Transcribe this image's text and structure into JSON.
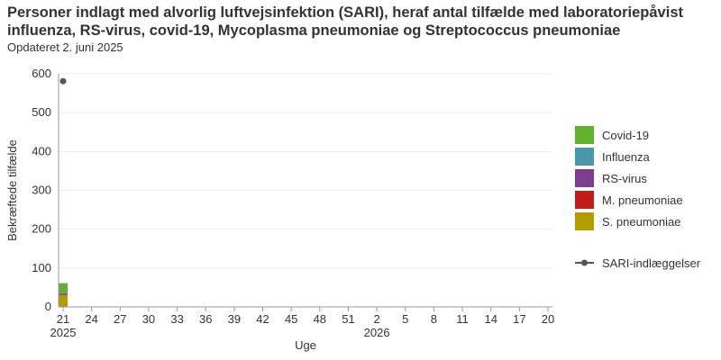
{
  "header": {
    "title_line1": "Personer indlagt med alvorlig luftvejsinfektion (SARI), heraf antal tilfælde med laboratoriepåvist",
    "title_line2": "influenza, RS-virus, covid-19, Mycoplasma pneumoniae og Streptococcus pneumoniae",
    "subtitle": "Opdateret 2. juni 2025"
  },
  "chart_data": {
    "type": "bar",
    "stacked": true,
    "title": "Personer indlagt med alvorlig luftvejsinfektion (SARI), heraf antal tilfælde med laboratoriepåvist influenza, RS-virus, covid-19, Mycoplasma pneumoniae og Streptococcus pneumoniae",
    "subtitle": "Opdateret 2. juni 2025",
    "xlabel": "Uge",
    "ylabel": "Bekræftede tilfælde",
    "ylim": [
      0,
      600
    ],
    "yticks": [
      0,
      100,
      200,
      300,
      400,
      500,
      600
    ],
    "grid": true,
    "legend_position": "right",
    "x_tick_labels": [
      "21",
      "24",
      "27",
      "30",
      "33",
      "36",
      "39",
      "42",
      "45",
      "48",
      "51",
      "2",
      "5",
      "8",
      "11",
      "14",
      "17",
      "20"
    ],
    "year_labels": [
      {
        "year": "2025",
        "at_tick": "21"
      },
      {
        "year": "2026",
        "at_tick": "2"
      }
    ],
    "categories": [
      "21"
    ],
    "series": [
      {
        "name": "S. pneumoniae",
        "type": "bar",
        "color": "#b39c00",
        "values": [
          30
        ]
      },
      {
        "name": "M. pneumoniae",
        "type": "bar",
        "color": "#bf1f1a",
        "values": [
          1
        ]
      },
      {
        "name": "RS-virus",
        "type": "bar",
        "color": "#7e3d8e",
        "values": [
          3
        ]
      },
      {
        "name": "Influenza",
        "type": "bar",
        "color": "#4a97ab",
        "values": [
          2
        ]
      },
      {
        "name": "Covid-19",
        "type": "bar",
        "color": "#62b02d",
        "values": [
          25
        ]
      },
      {
        "name": "SARI-indlæggelser",
        "type": "line",
        "color": "#555555",
        "values": [
          581
        ]
      }
    ],
    "legend_order": [
      "Covid-19",
      "Influenza",
      "RS-virus",
      "M. pneumoniae",
      "S. pneumoniae",
      "SARI-indlæggelser"
    ]
  }
}
